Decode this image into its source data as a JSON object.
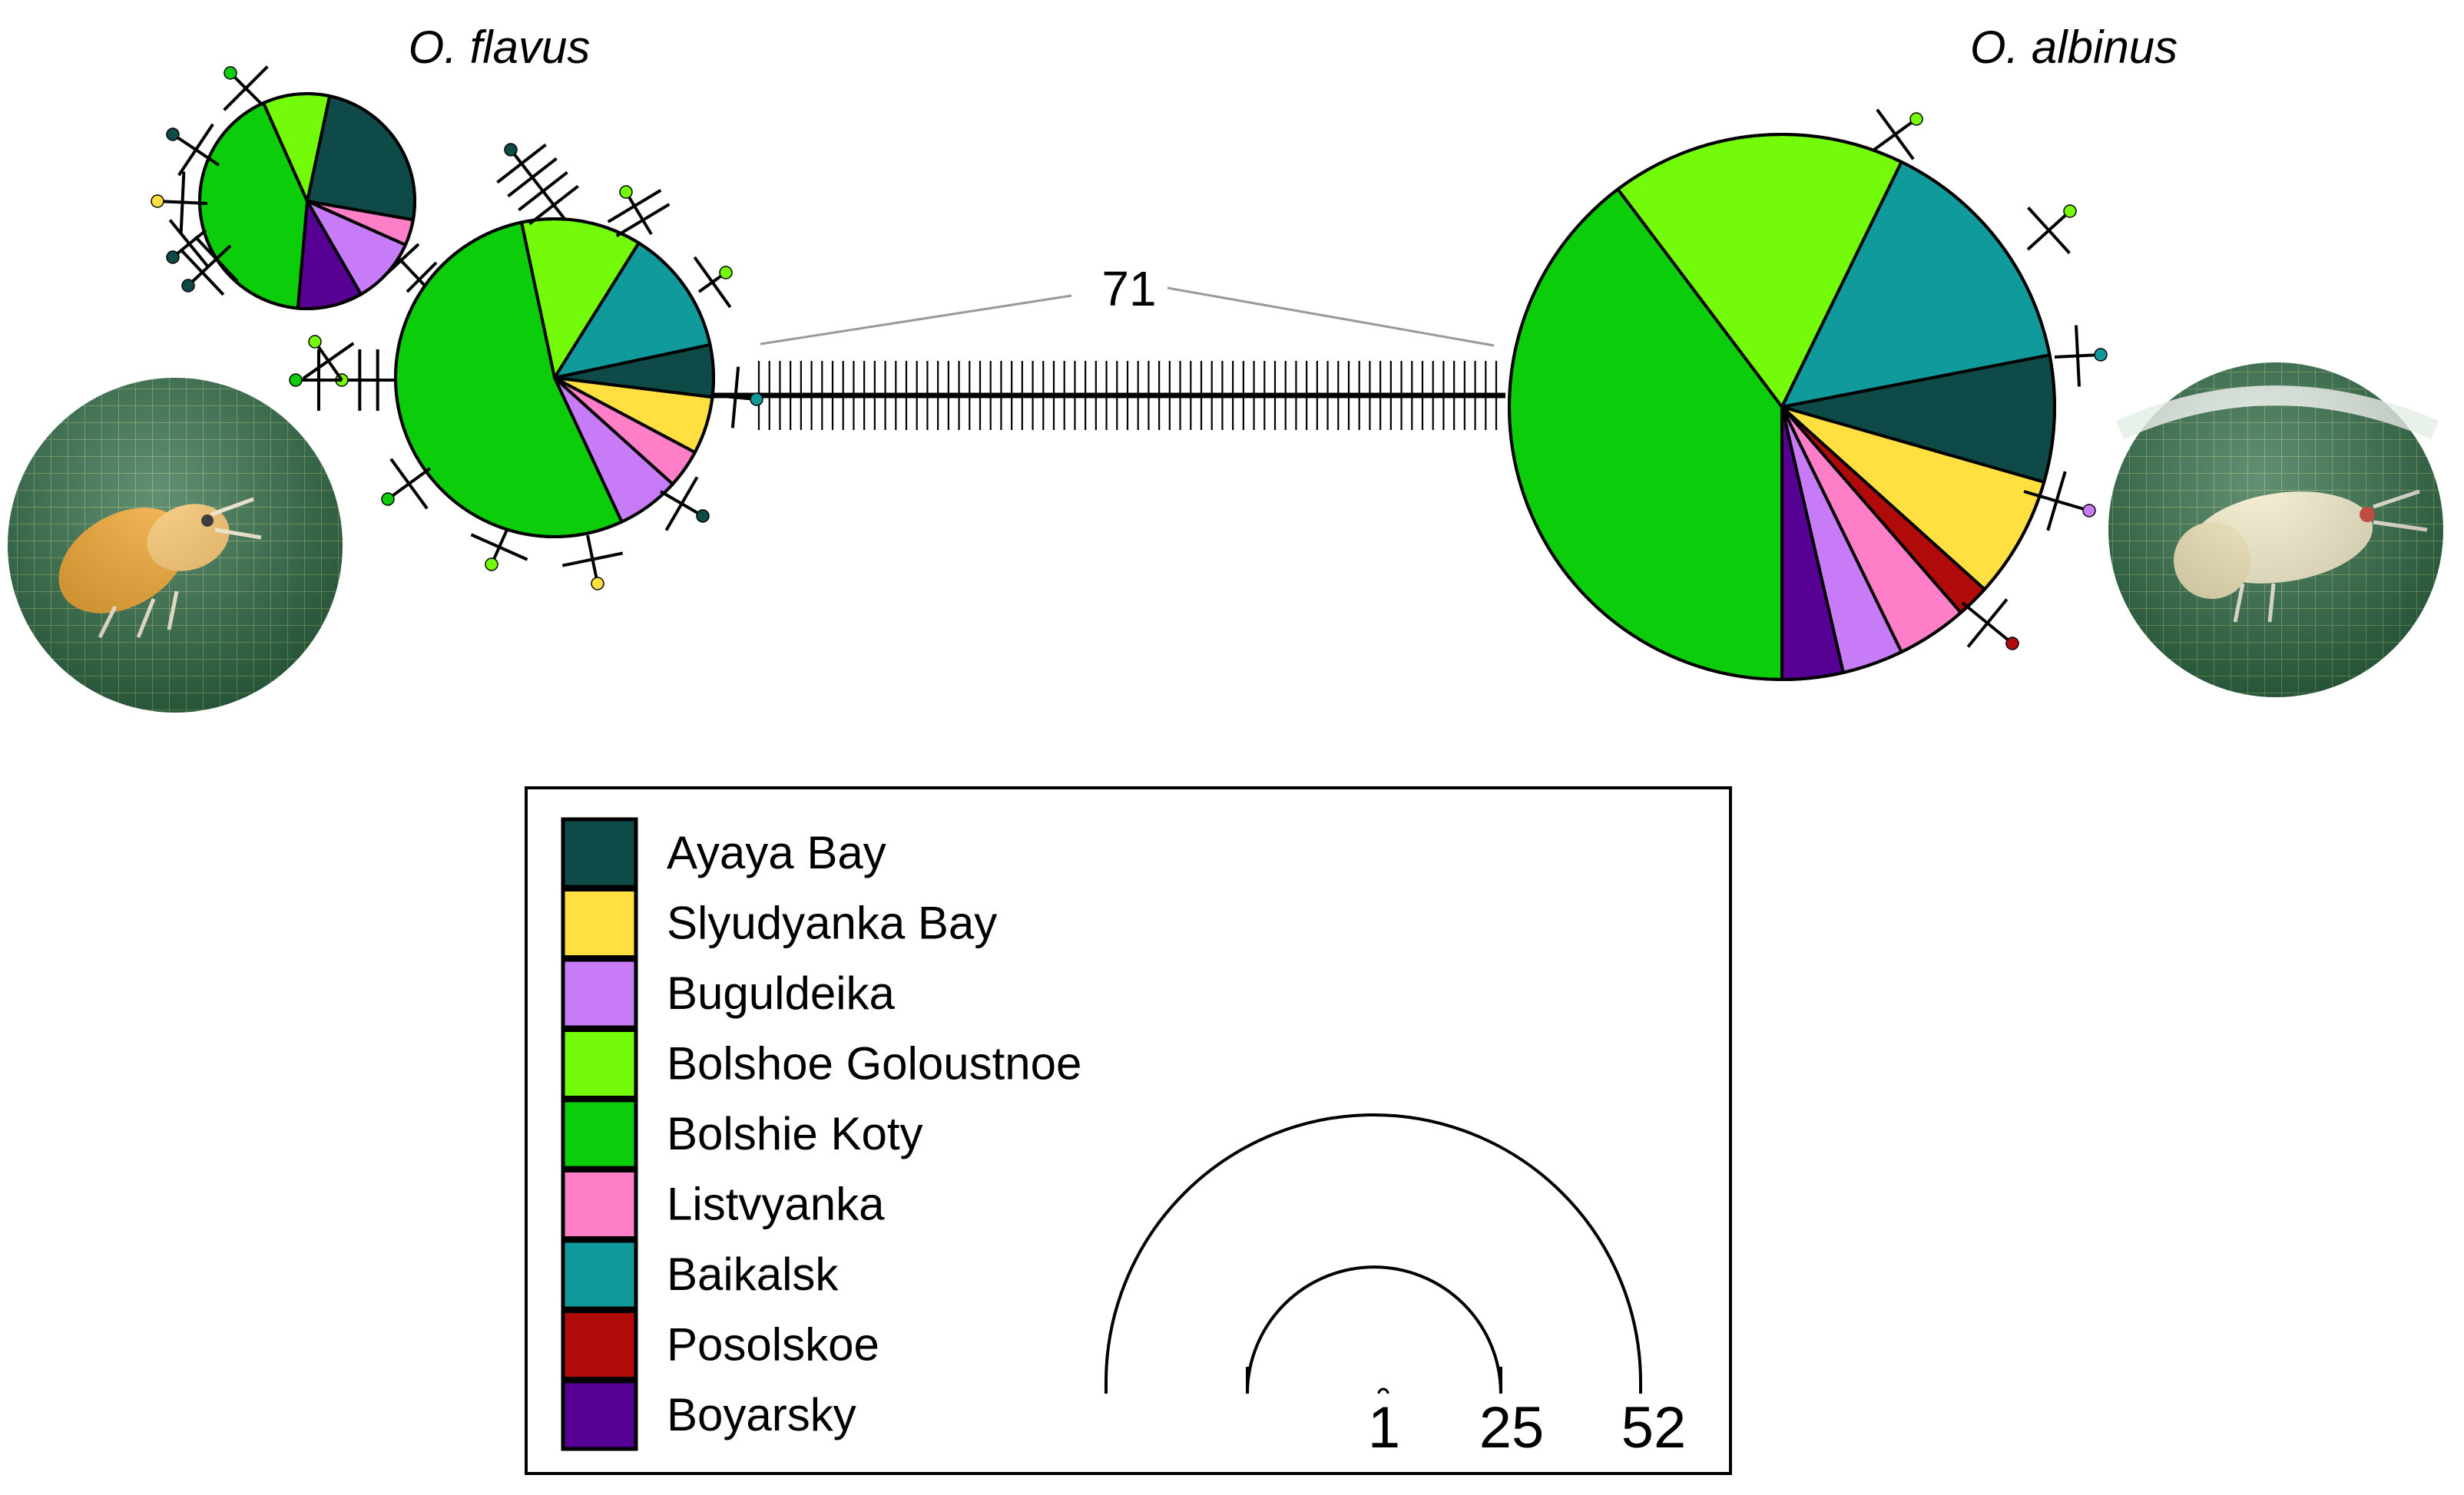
{
  "titles": {
    "left": "O. flavus",
    "right": "O. albinus"
  },
  "link": {
    "mutations_label": "71"
  },
  "legend": {
    "items": [
      {
        "label": "Ayaya Bay",
        "color": "#0e4a47"
      },
      {
        "label": "Slyudyanka Bay",
        "color": "#ffe040"
      },
      {
        "label": "Buguldeika",
        "color": "#c77bf6"
      },
      {
        "label": "Bolshoe Goloustnoe",
        "color": "#74fb0a"
      },
      {
        "label": "Bolshie Koty",
        "color": "#0ccd09"
      },
      {
        "label": "Listvyanka",
        "color": "#fe7ec8"
      },
      {
        "label": "Baikalsk",
        "color": "#109a9b"
      },
      {
        "label": "Posolskoe",
        "color": "#b00a09"
      },
      {
        "label": "Boyarsky",
        "color": "#560094"
      }
    ]
  },
  "scale": {
    "labels": [
      "1",
      "25",
      "52"
    ]
  },
  "photos": [
    {
      "icon": "amphipod-photo-orange"
    },
    {
      "icon": "amphipod-photo-white"
    }
  ]
}
